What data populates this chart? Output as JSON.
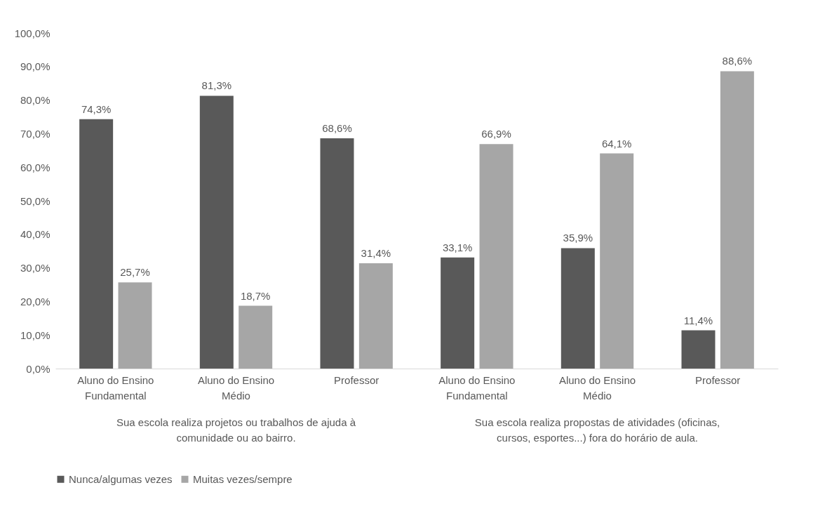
{
  "chart_data": {
    "type": "bar",
    "categories": [
      "Aluno do Ensino Fundamental",
      "Aluno do Ensino Médio",
      "Professor",
      "Aluno do Ensino Fundamental",
      "Aluno do Ensino Médio",
      "Professor"
    ],
    "series": [
      {
        "name": "Nunca/algumas vezes",
        "color": "#595959",
        "values": [
          74.3,
          81.3,
          68.6,
          33.1,
          35.9,
          11.4
        ],
        "value_labels": [
          "74,3%",
          "81,3%",
          "68,6%",
          "33,1%",
          "35,9%",
          "11,4%"
        ]
      },
      {
        "name": "Muitas vezes/sempre",
        "color": "#a6a6a6",
        "values": [
          25.7,
          18.7,
          31.4,
          66.9,
          64.1,
          88.6
        ],
        "value_labels": [
          "25,7%",
          "18,7%",
          "31,4%",
          "66,9%",
          "64,1%",
          "88,6%"
        ]
      }
    ],
    "ylim": [
      0,
      100
    ],
    "yticks": [
      {
        "value": 0,
        "label": "0,0%"
      },
      {
        "value": 10,
        "label": "10,0%"
      },
      {
        "value": 20,
        "label": "20,0%"
      },
      {
        "value": 30,
        "label": "30,0%"
      },
      {
        "value": 40,
        "label": "40,0%"
      },
      {
        "value": 50,
        "label": "50,0%"
      },
      {
        "value": 60,
        "label": "60,0%"
      },
      {
        "value": 70,
        "label": "70,0%"
      },
      {
        "value": 80,
        "label": "80,0%"
      },
      {
        "value": 90,
        "label": "90,0%"
      },
      {
        "value": 100,
        "label": "100,0%"
      }
    ],
    "annotations": [
      "Sua escola realiza projetos ou trabalhos de ajuda à comunidade ou ao bairro.",
      "Sua escola realiza propostas de atividades (oficinas, cursos, esportes...) fora do horário de aula."
    ],
    "legend": "bottom"
  }
}
